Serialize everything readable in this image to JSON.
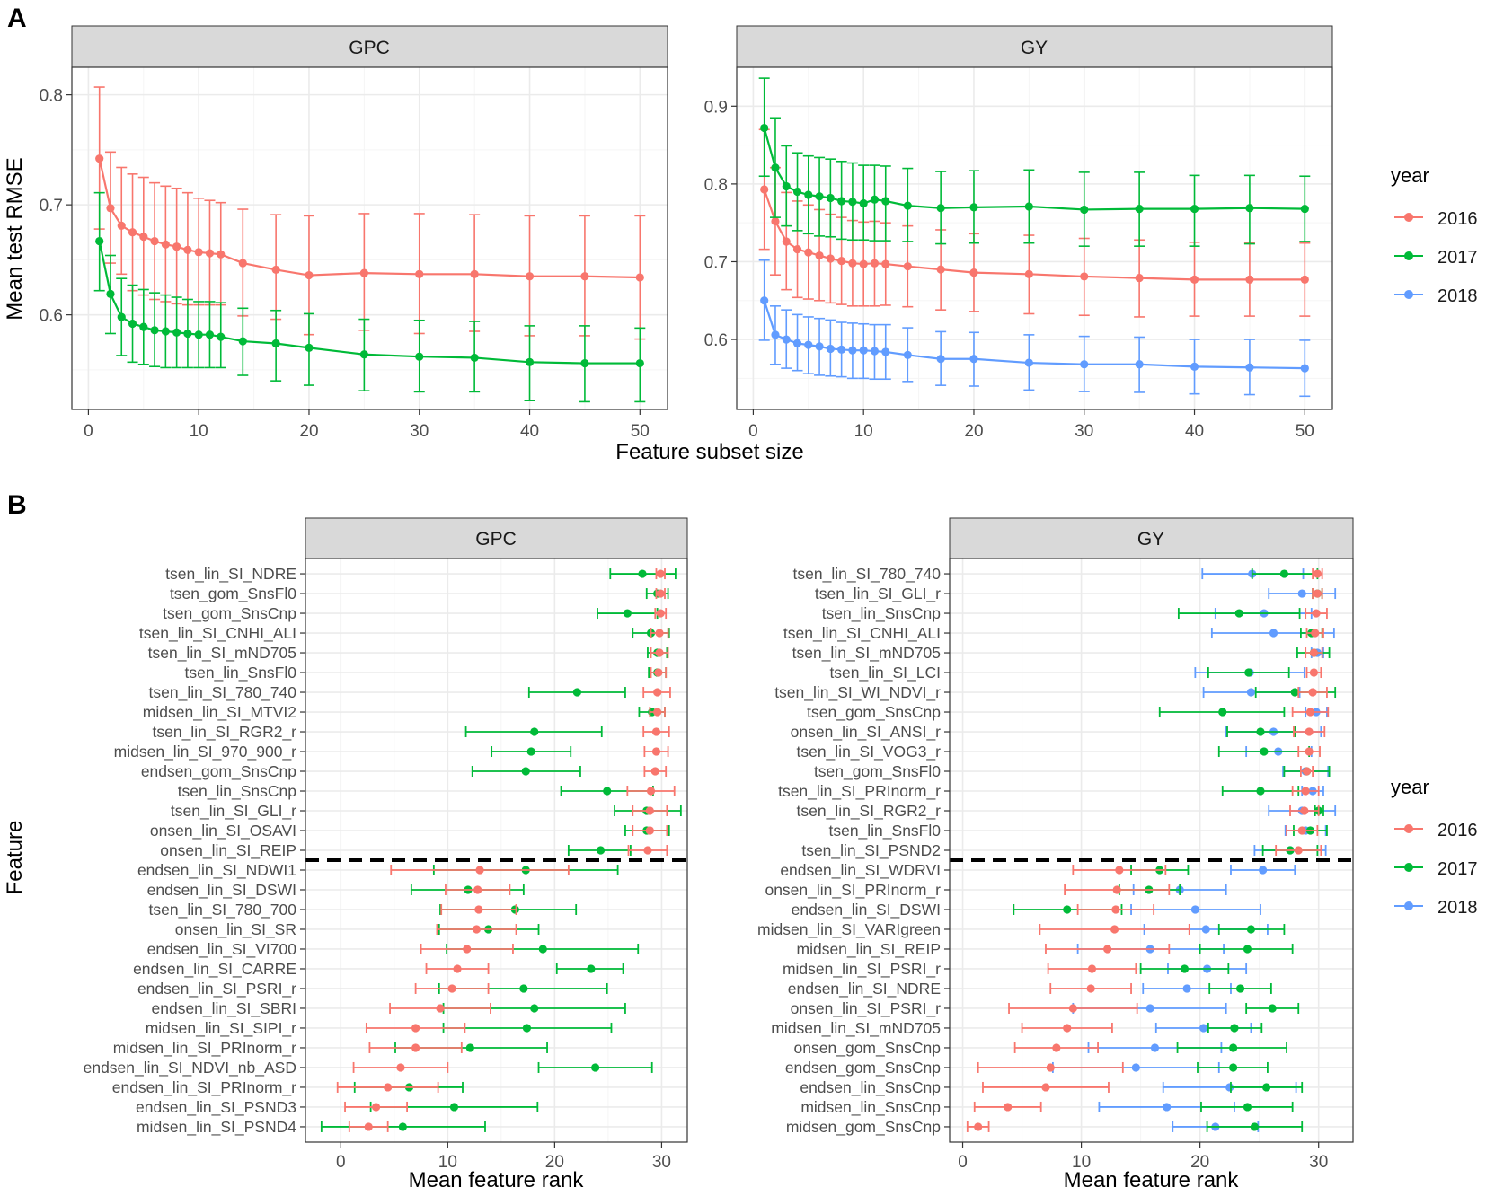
{
  "figure": {
    "panel_a_label": "A",
    "panel_b_label": "B"
  },
  "colors": {
    "2016": "#f8766d",
    "2017": "#00ba38",
    "2018": "#619cff",
    "strip_bg": "#d9d9d9",
    "grid_major": "#ebebeb",
    "grid_minor": "#f5f5f5",
    "axis_text": "#4d4d4d"
  },
  "chart_data": [
    {
      "id": "A_GPC",
      "type": "line",
      "panel": "A",
      "facet": "GPC",
      "xlabel": "Feature subset size",
      "ylabel": "Mean test RMSE",
      "xlim": [
        -1.5,
        52.5
      ],
      "ylim": [
        0.514,
        0.825
      ],
      "xticks": [
        0,
        10,
        20,
        30,
        40,
        50
      ],
      "yticks": [
        0.6,
        0.7,
        0.8
      ],
      "ytick_labels": [
        "0.6",
        "0.7",
        "0.8"
      ],
      "x": [
        1,
        2,
        3,
        4,
        5,
        6,
        7,
        8,
        9,
        10,
        11,
        12,
        14,
        17,
        20,
        25,
        30,
        35,
        40,
        45,
        50
      ],
      "series": [
        {
          "name": "2016",
          "values": [
            0.742,
            0.697,
            0.681,
            0.675,
            0.671,
            0.667,
            0.664,
            0.662,
            0.659,
            0.657,
            0.656,
            0.655,
            0.647,
            0.641,
            0.636,
            0.638,
            0.637,
            0.637,
            0.635,
            0.635,
            0.634
          ],
          "lower": [
            0.678,
            0.647,
            0.637,
            0.622,
            0.618,
            0.614,
            0.612,
            0.61,
            0.609,
            0.609,
            0.609,
            0.609,
            0.599,
            0.596,
            0.582,
            0.586,
            0.583,
            0.585,
            0.581,
            0.581,
            0.578
          ],
          "upper": [
            0.807,
            0.748,
            0.734,
            0.728,
            0.725,
            0.72,
            0.717,
            0.715,
            0.711,
            0.706,
            0.704,
            0.702,
            0.696,
            0.691,
            0.69,
            0.692,
            0.692,
            0.691,
            0.69,
            0.69,
            0.69
          ]
        },
        {
          "name": "2017",
          "values": [
            0.667,
            0.619,
            0.598,
            0.592,
            0.589,
            0.586,
            0.585,
            0.584,
            0.583,
            0.582,
            0.582,
            0.58,
            0.576,
            0.574,
            0.57,
            0.564,
            0.562,
            0.561,
            0.557,
            0.556,
            0.556
          ],
          "lower": [
            0.622,
            0.583,
            0.563,
            0.557,
            0.555,
            0.553,
            0.552,
            0.552,
            0.552,
            0.552,
            0.552,
            0.552,
            0.545,
            0.54,
            0.536,
            0.531,
            0.53,
            0.53,
            0.522,
            0.521,
            0.521
          ],
          "upper": [
            0.711,
            0.654,
            0.633,
            0.627,
            0.623,
            0.62,
            0.618,
            0.616,
            0.614,
            0.612,
            0.612,
            0.611,
            0.606,
            0.604,
            0.601,
            0.596,
            0.595,
            0.594,
            0.59,
            0.59,
            0.588
          ]
        }
      ]
    },
    {
      "id": "A_GY",
      "type": "line",
      "panel": "A",
      "facet": "GY",
      "xlabel": "Feature subset size",
      "ylabel": "Mean test RMSE",
      "xlim": [
        -1.5,
        52.5
      ],
      "ylim": [
        0.51,
        0.95
      ],
      "xticks": [
        0,
        10,
        20,
        30,
        40,
        50
      ],
      "yticks": [
        0.6,
        0.7,
        0.8,
        0.9
      ],
      "ytick_labels": [
        "0.6",
        "0.7",
        "0.8",
        "0.9"
      ],
      "x": [
        1,
        2,
        3,
        4,
        5,
        6,
        7,
        8,
        9,
        10,
        11,
        12,
        14,
        17,
        20,
        25,
        30,
        35,
        40,
        45,
        50
      ],
      "series": [
        {
          "name": "2016",
          "values": [
            0.793,
            0.752,
            0.726,
            0.716,
            0.712,
            0.708,
            0.704,
            0.701,
            0.698,
            0.697,
            0.698,
            0.697,
            0.694,
            0.69,
            0.686,
            0.684,
            0.681,
            0.679,
            0.677,
            0.677,
            0.677
          ],
          "lower": [
            0.716,
            0.683,
            0.664,
            0.654,
            0.652,
            0.65,
            0.647,
            0.645,
            0.643,
            0.643,
            0.643,
            0.644,
            0.642,
            0.638,
            0.636,
            0.633,
            0.631,
            0.629,
            0.63,
            0.63,
            0.63
          ],
          "upper": [
            0.87,
            0.821,
            0.789,
            0.778,
            0.773,
            0.767,
            0.761,
            0.757,
            0.753,
            0.751,
            0.752,
            0.75,
            0.746,
            0.741,
            0.736,
            0.734,
            0.73,
            0.728,
            0.725,
            0.724,
            0.724
          ]
        },
        {
          "name": "2017",
          "values": [
            0.872,
            0.821,
            0.797,
            0.79,
            0.786,
            0.784,
            0.782,
            0.778,
            0.777,
            0.775,
            0.78,
            0.778,
            0.772,
            0.769,
            0.77,
            0.771,
            0.767,
            0.768,
            0.768,
            0.769,
            0.768
          ],
          "lower": [
            0.81,
            0.757,
            0.746,
            0.74,
            0.736,
            0.733,
            0.732,
            0.729,
            0.728,
            0.728,
            0.727,
            0.727,
            0.726,
            0.723,
            0.724,
            0.724,
            0.72,
            0.72,
            0.72,
            0.723,
            0.726
          ],
          "upper": [
            0.936,
            0.885,
            0.849,
            0.84,
            0.836,
            0.834,
            0.832,
            0.829,
            0.827,
            0.824,
            0.824,
            0.823,
            0.82,
            0.816,
            0.817,
            0.818,
            0.815,
            0.815,
            0.811,
            0.811,
            0.81
          ]
        },
        {
          "name": "2018",
          "values": [
            0.65,
            0.606,
            0.6,
            0.595,
            0.593,
            0.591,
            0.588,
            0.587,
            0.586,
            0.586,
            0.585,
            0.584,
            0.58,
            0.575,
            0.575,
            0.57,
            0.568,
            0.568,
            0.565,
            0.564,
            0.563
          ],
          "lower": [
            0.599,
            0.568,
            0.563,
            0.56,
            0.556,
            0.554,
            0.553,
            0.552,
            0.55,
            0.55,
            0.549,
            0.549,
            0.546,
            0.541,
            0.54,
            0.535,
            0.533,
            0.532,
            0.53,
            0.529,
            0.527
          ],
          "upper": [
            0.702,
            0.643,
            0.638,
            0.632,
            0.629,
            0.627,
            0.625,
            0.622,
            0.621,
            0.62,
            0.619,
            0.619,
            0.615,
            0.61,
            0.609,
            0.606,
            0.604,
            0.603,
            0.6,
            0.6,
            0.599
          ]
        }
      ]
    },
    {
      "id": "B_GPC",
      "type": "scatter",
      "panel": "B",
      "facet": "GPC",
      "xlabel": "Mean feature rank",
      "ylabel": "Feature",
      "xlim": [
        -3.3,
        32.4
      ],
      "xticks": [
        0,
        10,
        20,
        30
      ],
      "threshold_after_index": 14,
      "features": [
        "tsen_lin_SI_NDRE",
        "tsen_gom_SnsFl0",
        "tsen_gom_SnsCnp",
        "tsen_lin_SI_CNHI_ALI",
        "tsen_lin_SI_mND705",
        "tsen_lin_SnsFl0",
        "tsen_lin_SI_780_740",
        "midsen_lin_SI_MTVI2",
        "tsen_lin_SI_RGR2_r",
        "midsen_lin_SI_970_900_r",
        "endsen_gom_SnsCnp",
        "tsen_lin_SnsCnp",
        "tsen_lin_SI_GLI_r",
        "onsen_lin_SI_OSAVI",
        "onsen_lin_SI_REIP",
        "endsen_lin_SI_NDWI1",
        "endsen_lin_SI_DSWI",
        "tsen_lin_SI_780_700",
        "onsen_lin_SI_SR",
        "endsen_lin_SI_VI700",
        "endsen_lin_SI_CARRE",
        "endsen_lin_SI_PSRI_r",
        "endsen_lin_SI_SBRI",
        "midsen_lin_SI_SIPI_r",
        "midsen_lin_SI_PRInorm_r",
        "endsen_lin_SI_NDVI_nb_ASD",
        "endsen_lin_SI_PRInorm_r",
        "endsen_lin_SI_PSND3",
        "midsen_lin_SI_PSND4"
      ],
      "series": [
        {
          "name": "2016",
          "values": [
            29.9,
            29.9,
            29.9,
            29.8,
            29.8,
            29.7,
            29.6,
            29.6,
            29.5,
            29.5,
            29.4,
            29.0,
            28.9,
            28.9,
            28.7,
            13.0,
            12.8,
            12.9,
            12.7,
            11.8,
            10.9,
            10.4,
            9.3,
            7.0,
            7.0,
            5.6,
            4.4,
            3.3,
            2.6
          ],
          "lower": [
            29.5,
            29.5,
            29.4,
            29.0,
            29.0,
            29.0,
            28.3,
            28.9,
            28.3,
            28.4,
            28.4,
            26.8,
            27.3,
            27.3,
            26.9,
            4.7,
            9.8,
            9.4,
            9.0,
            7.5,
            8.0,
            7.0,
            4.6,
            2.4,
            2.7,
            1.2,
            -0.3,
            0.4,
            0.8
          ],
          "upper": [
            30.3,
            30.3,
            30.4,
            30.6,
            30.6,
            30.4,
            30.8,
            30.3,
            30.7,
            30.6,
            30.4,
            31.2,
            30.5,
            30.5,
            30.5,
            21.3,
            15.8,
            16.4,
            16.4,
            16.1,
            13.8,
            13.8,
            14.0,
            11.6,
            11.3,
            10.0,
            9.1,
            6.2,
            4.4
          ]
        },
        {
          "name": "2017",
          "values": [
            28.2,
            29.6,
            26.8,
            29.0,
            29.6,
            29.6,
            22.1,
            29.1,
            18.1,
            17.8,
            17.3,
            24.9,
            28.6,
            28.6,
            24.3,
            17.3,
            11.9,
            16.3,
            13.8,
            18.9,
            23.4,
            17.1,
            18.1,
            17.4,
            12.1,
            23.8,
            6.4,
            10.6,
            5.8
          ],
          "lower": [
            25.2,
            28.6,
            24.0,
            27.3,
            28.7,
            28.8,
            17.6,
            27.9,
            11.7,
            14.1,
            12.3,
            20.6,
            25.6,
            26.6,
            21.3,
            8.7,
            6.6,
            9.3,
            9.2,
            9.9,
            20.2,
            9.2,
            9.6,
            9.6,
            5.1,
            18.5,
            1.3,
            2.8,
            -1.8
          ],
          "upper": [
            31.3,
            30.6,
            29.6,
            30.7,
            30.5,
            30.4,
            26.6,
            30.3,
            24.4,
            21.5,
            22.4,
            29.2,
            31.8,
            30.7,
            27.1,
            25.9,
            17.1,
            22.0,
            18.5,
            27.8,
            26.4,
            24.9,
            26.6,
            25.3,
            19.3,
            29.1,
            11.4,
            18.4,
            13.5
          ]
        }
      ]
    },
    {
      "id": "B_GY",
      "type": "scatter",
      "panel": "B",
      "facet": "GY",
      "xlabel": "Mean feature rank",
      "ylabel": "Feature",
      "xlim": [
        -1.1,
        32.9
      ],
      "xticks": [
        0,
        10,
        20,
        30
      ],
      "threshold_after_index": 14,
      "features": [
        "tsen_lin_SI_780_740",
        "tsen_lin_SI_GLI_r",
        "tsen_lin_SnsCnp",
        "tsen_lin_SI_CNHI_ALI",
        "tsen_lin_SI_mND705",
        "tsen_lin_SI_LCI",
        "tsen_lin_SI_WI_NDVI_r",
        "tsen_gom_SnsCnp",
        "onsen_lin_SI_ANSI_r",
        "tsen_lin_SI_VOG3_r",
        "tsen_gom_SnsFl0",
        "tsen_lin_SI_PRInorm_r",
        "tsen_lin_SI_RGR2_r",
        "tsen_lin_SnsFl0",
        "tsen_lin_SI_PSND2",
        "endsen_lin_SI_WDRVI",
        "onsen_lin_SI_PRInorm_r",
        "endsen_lin_SI_DSWI",
        "midsen_lin_SI_VARIgreen",
        "midsen_lin_SI_REIP",
        "midsen_lin_SI_PSRI_r",
        "endsen_lin_SI_NDRE",
        "onsen_lin_SI_PSRI_r",
        "midsen_lin_SI_mND705",
        "onsen_gom_SnsCnp",
        "endsen_gom_SnsCnp",
        "endsen_lin_SnsCnp",
        "midsen_lin_SnsCnp",
        "midsen_gom_SnsCnp"
      ],
      "series": [
        {
          "name": "2016",
          "values": [
            29.9,
            29.9,
            29.8,
            29.7,
            29.6,
            29.6,
            29.5,
            29.3,
            29.2,
            29.2,
            29.0,
            28.9,
            28.8,
            28.6,
            28.3,
            13.2,
            13.0,
            12.9,
            12.8,
            12.2,
            10.9,
            10.8,
            9.3,
            8.8,
            7.9,
            7.4,
            7.0,
            3.8,
            1.3
          ],
          "lower": [
            29.5,
            29.5,
            28.9,
            29.0,
            28.9,
            29.0,
            28.3,
            27.8,
            27.9,
            28.3,
            28.5,
            27.8,
            27.6,
            27.3,
            26.4,
            9.3,
            8.6,
            9.7,
            6.5,
            7.0,
            7.2,
            7.4,
            3.9,
            5.0,
            4.4,
            1.3,
            1.7,
            1.0,
            0.4
          ],
          "upper": [
            30.3,
            30.3,
            30.7,
            30.4,
            30.3,
            30.2,
            30.7,
            30.8,
            30.5,
            30.1,
            29.5,
            30.0,
            30.0,
            29.9,
            30.2,
            17.1,
            17.4,
            16.1,
            19.1,
            17.4,
            14.6,
            14.2,
            14.7,
            12.6,
            11.4,
            13.5,
            12.3,
            6.6,
            2.2
          ]
        },
        {
          "name": "2017",
          "values": [
            27.1,
            29.9,
            23.3,
            29.4,
            29.6,
            24.1,
            28.0,
            21.9,
            25.1,
            25.4,
            29.0,
            25.1,
            30.0,
            29.3,
            27.6,
            16.6,
            15.7,
            8.8,
            24.3,
            24.0,
            18.7,
            23.4,
            26.1,
            22.9,
            22.8,
            22.8,
            25.6,
            24.0,
            24.6
          ],
          "lower": [
            24.4,
            29.5,
            18.2,
            28.5,
            28.2,
            20.7,
            24.7,
            16.6,
            22.3,
            21.6,
            27.1,
            21.9,
            29.7,
            27.9,
            25.3,
            14.2,
            13.2,
            4.3,
            21.6,
            20.0,
            15.0,
            20.8,
            23.9,
            20.7,
            18.1,
            19.8,
            22.6,
            20.1,
            20.6
          ],
          "upper": [
            29.9,
            30.3,
            28.4,
            30.3,
            30.9,
            27.5,
            31.4,
            27.1,
            28.0,
            29.2,
            30.9,
            28.3,
            30.4,
            30.7,
            29.9,
            19.0,
            18.3,
            13.4,
            27.1,
            27.8,
            22.4,
            26.0,
            28.3,
            25.2,
            27.3,
            25.7,
            28.6,
            27.8,
            28.6
          ]
        },
        {
          "name": "2018",
          "values": [
            24.4,
            28.6,
            25.4,
            26.2,
            29.9,
            24.2,
            24.3,
            29.8,
            26.2,
            26.6,
            28.9,
            29.5,
            28.6,
            28.9,
            27.6,
            25.3,
            18.3,
            19.6,
            20.5,
            15.8,
            20.6,
            18.9,
            15.8,
            20.3,
            16.2,
            14.6,
            22.5,
            17.2,
            21.3
          ],
          "lower": [
            20.2,
            25.8,
            21.3,
            21.0,
            29.4,
            19.6,
            20.3,
            28.9,
            22.2,
            23.9,
            27.0,
            28.6,
            25.8,
            27.2,
            24.6,
            22.6,
            14.4,
            14.2,
            15.3,
            9.7,
            17.3,
            15.2,
            9.3,
            16.3,
            10.6,
            7.6,
            16.9,
            11.5,
            17.7
          ],
          "upper": [
            28.7,
            31.4,
            29.4,
            31.3,
            30.4,
            28.8,
            28.4,
            30.7,
            30.2,
            29.4,
            30.8,
            30.4,
            31.4,
            30.6,
            30.6,
            28.0,
            22.2,
            25.1,
            25.7,
            22.0,
            23.9,
            22.6,
            22.2,
            24.3,
            21.8,
            21.6,
            28.1,
            22.9,
            24.9
          ]
        }
      ]
    }
  ],
  "legends": {
    "A": {
      "title": "year",
      "items": [
        "2016",
        "2017",
        "2018"
      ]
    },
    "B": {
      "title": "year",
      "items": [
        "2016",
        "2017",
        "2018"
      ]
    }
  }
}
